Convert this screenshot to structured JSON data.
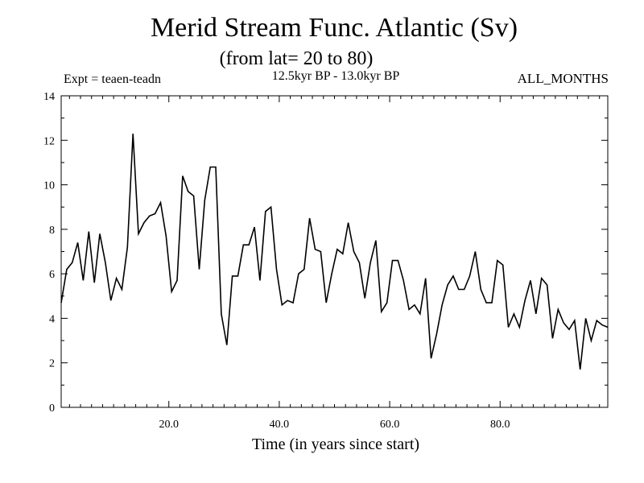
{
  "chart_data": {
    "type": "line",
    "title": "Merid Stream Func. Atlantic (Sv)",
    "subtitle": "(from lat= 20 to 80)",
    "annotations": {
      "left": "Expt = teaen-teadn",
      "center": "12.5kyr BP - 13.0kyr BP",
      "right": "ALL_MONTHS"
    },
    "xlabel": "Time (in years since start)",
    "ylabel": "",
    "xlim": [
      0.5,
      99.5
    ],
    "ylim": [
      0,
      14
    ],
    "xticks": [
      20,
      40,
      60,
      80
    ],
    "xtick_labels": [
      "20.0",
      "40.0",
      "60.0",
      "80.0"
    ],
    "yticks": [
      0,
      2,
      4,
      6,
      8,
      10,
      12,
      14
    ],
    "ytick_labels": [
      "0",
      "2",
      "4",
      "6",
      "8",
      "10",
      "12",
      "14"
    ],
    "grid": false,
    "series": [
      {
        "name": "Merid Stream Func. Atlantic",
        "x": [
          0.5,
          1.5,
          2.5,
          3.5,
          4.5,
          5.5,
          6.5,
          7.5,
          8.5,
          9.5,
          10.5,
          11.5,
          12.5,
          13.5,
          14.5,
          15.5,
          16.5,
          17.5,
          18.5,
          19.5,
          20.5,
          21.5,
          22.5,
          23.5,
          24.5,
          25.5,
          26.5,
          27.5,
          28.5,
          29.5,
          30.5,
          31.5,
          32.5,
          33.5,
          34.5,
          35.5,
          36.5,
          37.5,
          38.5,
          39.5,
          40.5,
          41.5,
          42.5,
          43.5,
          44.5,
          45.5,
          46.5,
          47.5,
          48.5,
          49.5,
          50.5,
          51.5,
          52.5,
          53.5,
          54.5,
          55.5,
          56.5,
          57.5,
          58.5,
          59.5,
          60.5,
          61.5,
          62.5,
          63.5,
          64.5,
          65.5,
          66.5,
          67.5,
          68.5,
          69.5,
          70.5,
          71.5,
          72.5,
          73.5,
          74.5,
          75.5,
          76.5,
          77.5,
          78.5,
          79.5,
          80.5,
          81.5,
          82.5,
          83.5,
          84.5,
          85.5,
          86.5,
          87.5,
          88.5,
          89.5,
          90.5,
          91.5,
          92.5,
          93.5,
          94.5,
          95.5,
          96.5,
          97.5,
          98.5,
          99.5
        ],
        "values": [
          4.7,
          6.2,
          6.5,
          7.4,
          5.7,
          7.9,
          5.6,
          7.8,
          6.5,
          4.8,
          5.8,
          5.3,
          7.2,
          12.3,
          7.8,
          8.3,
          8.6,
          8.7,
          9.2,
          7.7,
          5.2,
          5.7,
          10.4,
          9.7,
          9.5,
          6.2,
          9.3,
          10.8,
          10.8,
          4.2,
          2.8,
          5.9,
          5.9,
          7.3,
          7.3,
          8.1,
          5.7,
          8.8,
          9.0,
          6.2,
          4.6,
          4.8,
          4.7,
          6.0,
          6.2,
          8.5,
          7.1,
          7.0,
          4.7,
          6.0,
          7.1,
          6.9,
          8.3,
          7.0,
          6.5,
          4.9,
          6.5,
          7.5,
          4.3,
          4.7,
          6.6,
          6.6,
          5.7,
          4.4,
          4.6,
          4.2,
          5.8,
          2.2,
          3.3,
          4.6,
          5.5,
          5.9,
          5.3,
          5.3,
          5.9,
          7.0,
          5.3,
          4.7,
          4.7,
          6.6,
          6.4,
          3.6,
          4.2,
          3.6,
          4.8,
          5.7,
          4.2,
          5.8,
          5.5,
          3.1,
          4.4,
          3.8,
          3.5,
          3.9,
          1.7,
          4.0,
          3.0,
          3.9,
          3.7,
          3.6
        ]
      }
    ]
  }
}
